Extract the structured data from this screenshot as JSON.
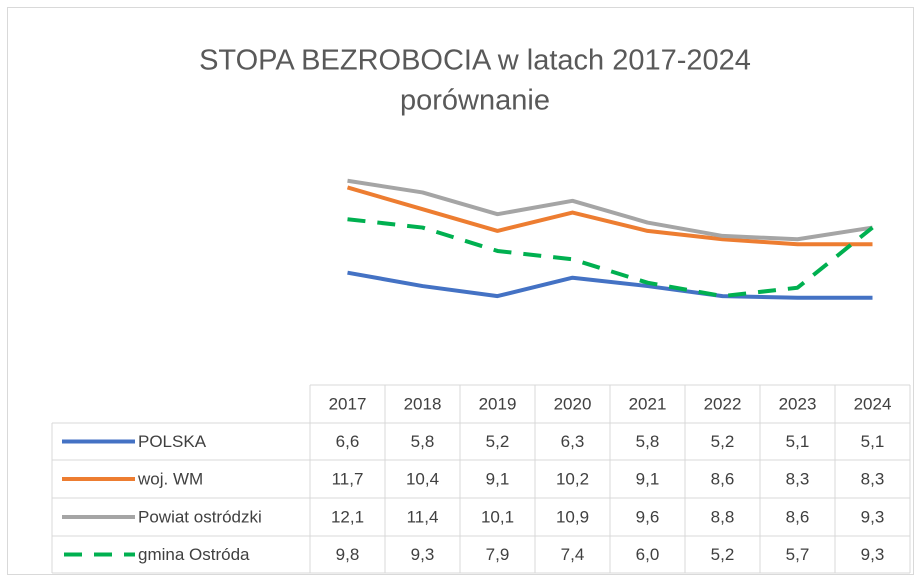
{
  "chart_data": {
    "type": "line",
    "title": "STOPA BEZROBOCIA w latach 2017-2024",
    "subtitle": "porównanie",
    "categories": [
      "2017",
      "2018",
      "2019",
      "2020",
      "2021",
      "2022",
      "2023",
      "2024"
    ],
    "ylim": [
      0,
      14
    ],
    "series": [
      {
        "name": "POLSKA",
        "color": "#4472c4",
        "dash": false,
        "values": [
          6.6,
          5.8,
          5.2,
          6.3,
          5.8,
          5.2,
          5.1,
          5.1
        ],
        "value_labels": [
          "6,6",
          "5,8",
          "5,2",
          "6,3",
          "5,8",
          "5,2",
          "5,1",
          "5,1"
        ]
      },
      {
        "name": "woj. WM",
        "color": "#ed7d31",
        "dash": false,
        "values": [
          11.7,
          10.4,
          9.1,
          10.2,
          9.1,
          8.6,
          8.3,
          8.3
        ],
        "value_labels": [
          "11,7",
          "10,4",
          "9,1",
          "10,2",
          "9,1",
          "8,6",
          "8,3",
          "8,3"
        ]
      },
      {
        "name": "Powiat ostródzki",
        "color": "#a5a5a5",
        "dash": false,
        "values": [
          12.1,
          11.4,
          10.1,
          10.9,
          9.6,
          8.8,
          8.6,
          9.3
        ],
        "value_labels": [
          "12,1",
          "11,4",
          "10,1",
          "10,9",
          "9,6",
          "8,8",
          "8,6",
          "9,3"
        ]
      },
      {
        "name": "gmina Ostróda",
        "color": "#00b050",
        "dash": true,
        "values": [
          9.8,
          9.3,
          7.9,
          7.4,
          6.0,
          5.2,
          5.7,
          9.3
        ],
        "value_labels": [
          "9,8",
          "9,3",
          "7,9",
          "7,4",
          "6,0",
          "5,2",
          "5,7",
          "9,3"
        ]
      }
    ]
  }
}
